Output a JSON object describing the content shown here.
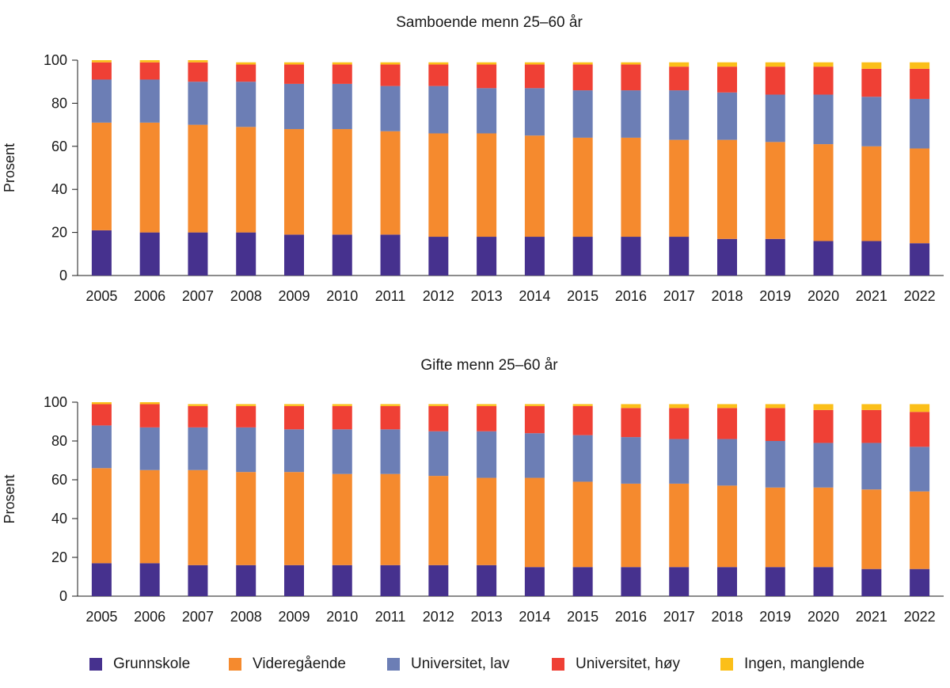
{
  "colors": {
    "grunnskole": "#46318e",
    "videregaende": "#f58a2e",
    "univ_lav": "#6c7eb5",
    "univ_hoy": "#ef4035",
    "ingen": "#fbbf19"
  },
  "legend": [
    {
      "key": "grunnskole",
      "label": "Grunnskole"
    },
    {
      "key": "videregaende",
      "label": "Videregående"
    },
    {
      "key": "univ_lav",
      "label": "Universitet, lav"
    },
    {
      "key": "univ_hoy",
      "label": "Universitet, høy"
    },
    {
      "key": "ingen",
      "label": "Ingen, manglende"
    }
  ],
  "chart_data": [
    {
      "type": "bar",
      "stacked": true,
      "title": "Samboende menn 25–60 år",
      "xlabel": "",
      "ylabel": "Prosent",
      "ylim": [
        0,
        100
      ],
      "yticks": [
        0,
        20,
        40,
        60,
        80,
        100
      ],
      "categories": [
        "2005",
        "2006",
        "2007",
        "2008",
        "2009",
        "2010",
        "2011",
        "2012",
        "2013",
        "2014",
        "2015",
        "2016",
        "2017",
        "2018",
        "2019",
        "2020",
        "2021",
        "2022"
      ],
      "series": [
        {
          "name": "Grunnskole",
          "key": "grunnskole",
          "values": [
            21,
            20,
            20,
            20,
            19,
            19,
            19,
            18,
            18,
            18,
            18,
            18,
            18,
            17,
            17,
            16,
            16,
            15
          ]
        },
        {
          "name": "Videregående",
          "key": "videregaende",
          "values": [
            50,
            51,
            50,
            49,
            49,
            49,
            48,
            48,
            48,
            47,
            46,
            46,
            45,
            46,
            45,
            45,
            44,
            44
          ]
        },
        {
          "name": "Universitet, lav",
          "key": "univ_lav",
          "values": [
            20,
            20,
            20,
            21,
            21,
            21,
            21,
            22,
            21,
            22,
            22,
            22,
            23,
            22,
            22,
            23,
            23,
            23
          ]
        },
        {
          "name": "Universitet, høy",
          "key": "univ_hoy",
          "values": [
            8,
            8,
            9,
            8,
            9,
            9,
            10,
            10,
            11,
            11,
            12,
            12,
            11,
            12,
            13,
            13,
            13,
            14
          ]
        },
        {
          "name": "Ingen, manglende",
          "key": "ingen",
          "values": [
            1,
            1,
            1,
            1,
            1,
            1,
            1,
            1,
            1,
            1,
            1,
            1,
            2,
            2,
            2,
            2,
            3,
            3
          ]
        }
      ]
    },
    {
      "type": "bar",
      "stacked": true,
      "title": "Gifte menn 25–60 år",
      "xlabel": "",
      "ylabel": "Prosent",
      "ylim": [
        0,
        100
      ],
      "yticks": [
        0,
        20,
        40,
        60,
        80,
        100
      ],
      "categories": [
        "2005",
        "2006",
        "2007",
        "2008",
        "2009",
        "2010",
        "2011",
        "2012",
        "2013",
        "2014",
        "2015",
        "2016",
        "2017",
        "2018",
        "2019",
        "2020",
        "2021",
        "2022"
      ],
      "series": [
        {
          "name": "Grunnskole",
          "key": "grunnskole",
          "values": [
            17,
            17,
            16,
            16,
            16,
            16,
            16,
            16,
            16,
            15,
            15,
            15,
            15,
            15,
            15,
            15,
            14,
            14
          ]
        },
        {
          "name": "Videregående",
          "key": "videregaende",
          "values": [
            49,
            48,
            49,
            48,
            48,
            47,
            47,
            46,
            45,
            46,
            44,
            43,
            43,
            42,
            41,
            41,
            41,
            40
          ]
        },
        {
          "name": "Universitet, lav",
          "key": "univ_lav",
          "values": [
            22,
            22,
            22,
            23,
            22,
            23,
            23,
            23,
            24,
            23,
            24,
            24,
            23,
            24,
            24,
            23,
            24,
            23
          ]
        },
        {
          "name": "Universitet, høy",
          "key": "univ_hoy",
          "values": [
            11,
            12,
            11,
            11,
            12,
            12,
            12,
            13,
            13,
            14,
            15,
            15,
            16,
            16,
            17,
            17,
            17,
            18
          ]
        },
        {
          "name": "Ingen, manglende",
          "key": "ingen",
          "values": [
            1,
            1,
            1,
            1,
            1,
            1,
            1,
            1,
            1,
            1,
            1,
            2,
            2,
            2,
            2,
            3,
            3,
            4
          ]
        }
      ]
    }
  ]
}
